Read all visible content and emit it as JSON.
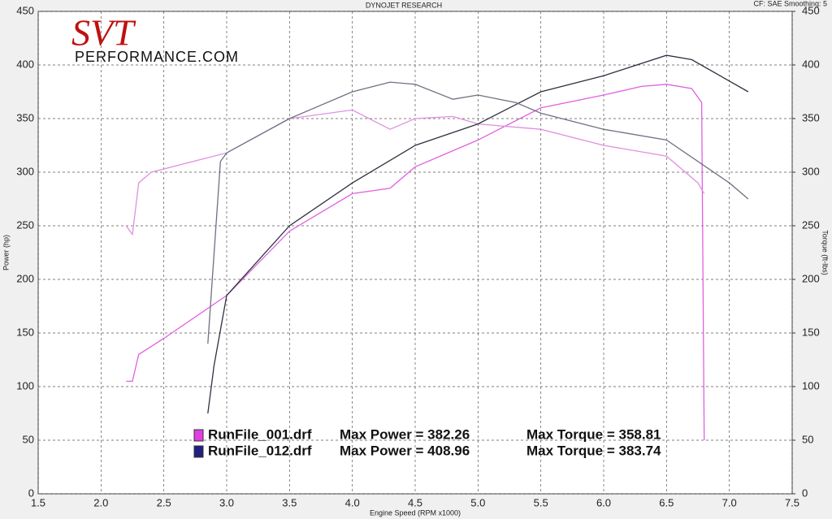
{
  "chart_data": {
    "type": "line",
    "title": "DYNOJET RESEARCH",
    "subtitle": "CF: SAE  Smoothing: 5",
    "logo": {
      "mark": "SVT",
      "text": "PERFORMANCE.COM"
    },
    "x_label": "Engine Speed (RPM x1000)",
    "y_label": "Power (hp)",
    "y2_label": "Torque (ft-lbs)",
    "xlim": [
      1.5,
      7.5
    ],
    "xticks": [
      1.5,
      {
        "value": 2,
        "label": "2.0"
      },
      2.5,
      {
        "value": 3,
        "label": "3.0"
      },
      3.5,
      {
        "value": 4,
        "label": "4.0"
      },
      4.5,
      {
        "value": 5,
        "label": "5.0"
      },
      5.5,
      {
        "value": 6,
        "label": "6.0"
      },
      6.5,
      {
        "value": 7,
        "label": "7.0"
      },
      7.5
    ],
    "ylim": [
      0,
      450
    ],
    "yticks": [
      0,
      50,
      100,
      150,
      200,
      250,
      300,
      350,
      400,
      450
    ],
    "y2lim": [
      0,
      450
    ],
    "y2ticks": [
      0,
      50,
      100,
      150,
      200,
      250,
      300,
      350,
      400,
      450
    ],
    "grid": true,
    "series": [
      {
        "name": "RunFile_001.drf",
        "color": "#e060e0",
        "axis": "y",
        "x": [
          2.2,
          2.25,
          2.3,
          2.5,
          3.0,
          3.5,
          4.0,
          4.3,
          4.5,
          5.0,
          5.5,
          6.0,
          6.3,
          6.5,
          6.7,
          6.78,
          6.8
        ],
        "values": [
          105,
          105,
          130,
          145,
          185,
          245,
          280,
          285,
          305,
          330,
          360,
          372,
          380,
          382,
          378,
          365,
          50
        ]
      },
      {
        "name": "RunFile_001.drf",
        "color": "#e090e0",
        "axis": "y2",
        "x": [
          2.2,
          2.25,
          2.3,
          2.4,
          3.0,
          3.5,
          4.0,
          4.3,
          4.5,
          4.8,
          5.0,
          5.5,
          6.0,
          6.5,
          6.75,
          6.8
        ],
        "values": [
          250,
          242,
          290,
          300,
          318,
          350,
          358,
          340,
          350,
          352,
          345,
          340,
          325,
          315,
          290,
          280
        ]
      },
      {
        "name": "RunFile_012.drf",
        "color": "#303040",
        "axis": "y",
        "x": [
          2.85,
          2.9,
          3.0,
          3.5,
          4.0,
          4.5,
          5.0,
          5.5,
          6.0,
          6.5,
          6.7,
          7.0,
          7.15
        ],
        "values": [
          75,
          120,
          185,
          250,
          290,
          325,
          345,
          375,
          390,
          409,
          405,
          385,
          375
        ]
      },
      {
        "name": "RunFile_012.drf",
        "color": "#707080",
        "axis": "y2",
        "x": [
          2.85,
          2.95,
          3.0,
          3.5,
          4.0,
          4.3,
          4.5,
          4.8,
          5.0,
          5.3,
          5.5,
          6.0,
          6.5,
          7.0,
          7.15
        ],
        "values": [
          140,
          310,
          318,
          350,
          375,
          384,
          382,
          368,
          372,
          365,
          355,
          340,
          330,
          290,
          275
        ]
      }
    ],
    "annotations": [
      {
        "series_name": "RunFile_001.drf",
        "power": "Max Power = 382.26",
        "torque": "Max Torque = 358.81"
      },
      {
        "series_name": "RunFile_012.drf",
        "power": "Max Power = 408.96",
        "torque": "Max Torque = 383.74"
      }
    ]
  }
}
